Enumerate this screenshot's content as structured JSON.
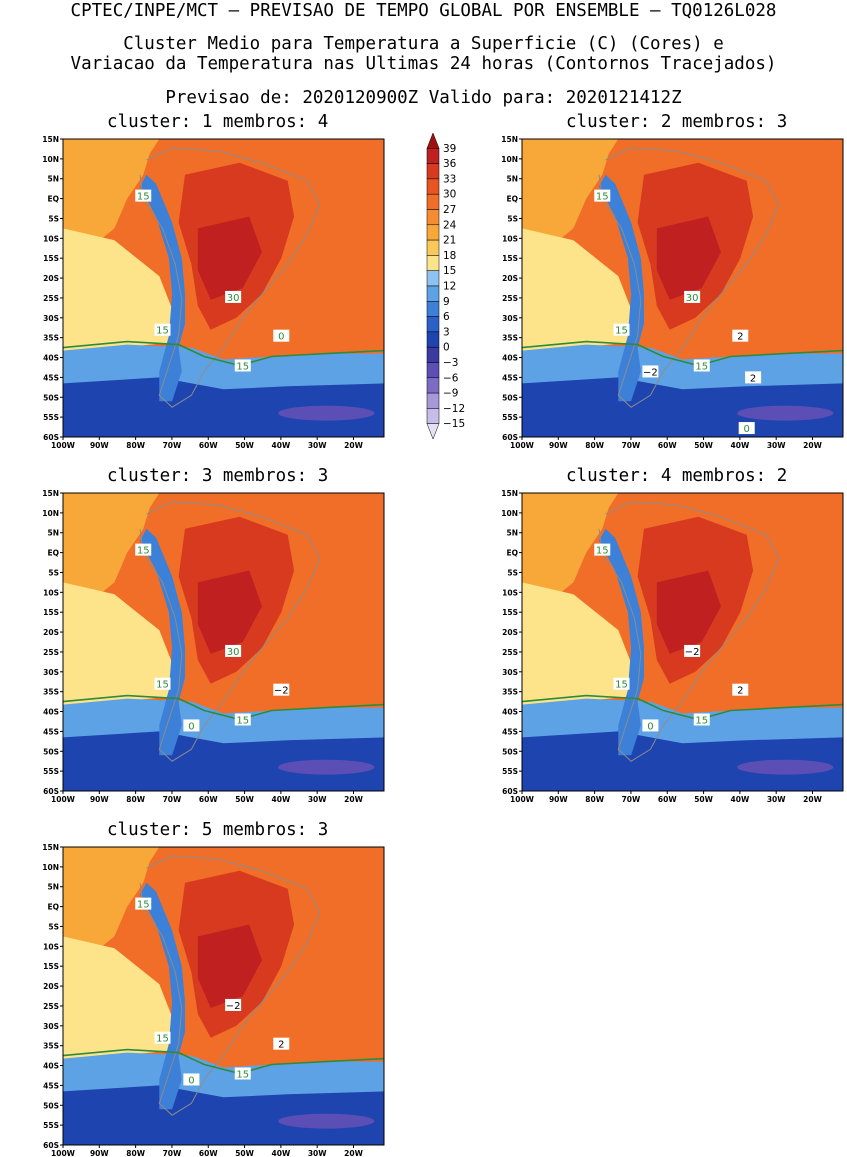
{
  "header": {
    "line1": "CPTEC/INPE/MCT – PREVISAO DE TEMPO GLOBAL POR ENSEMBLE – TQ0126L028",
    "line2": "Cluster Medio para Temperatura a Superficie (C) (Cores) e",
    "line3": "Variacao da Temperatura nas Ultimas 24 horas (Contornos Tracejados)",
    "line4": "Previsao de: 2020120900Z    Valido para: 2020121412Z"
  },
  "panels": [
    {
      "title": "cluster: 1   membros: 4",
      "labels": [
        "15",
        "15",
        "15",
        "30",
        "0"
      ]
    },
    {
      "title": "cluster: 2   membros: 3",
      "labels": [
        "15",
        "15",
        "15",
        "30",
        "2",
        "−2",
        "2",
        "0"
      ]
    },
    {
      "title": "cluster: 3   membros: 3",
      "labels": [
        "15",
        "15",
        "15",
        "30",
        "−2",
        "0"
      ]
    },
    {
      "title": "cluster: 4   membros: 2",
      "labels": [
        "15",
        "15",
        "15",
        "−2",
        "2",
        "0"
      ]
    },
    {
      "title": "cluster: 5   membros: 3",
      "labels": [
        "15",
        "15",
        "15",
        "−2",
        "2",
        "0"
      ]
    }
  ],
  "axes": {
    "lat_ticks": [
      "15N",
      "10N",
      "5N",
      "EQ",
      "5S",
      "10S",
      "15S",
      "20S",
      "25S",
      "30S",
      "35S",
      "40S",
      "45S",
      "50S",
      "55S",
      "60S"
    ],
    "lon_ticks": [
      "100W",
      "90W",
      "80W",
      "70W",
      "60W",
      "50W",
      "40W",
      "30W",
      "20W"
    ]
  },
  "colorbar": {
    "labels": [
      "39",
      "36",
      "33",
      "30",
      "27",
      "24",
      "21",
      "18",
      "15",
      "12",
      "9",
      "6",
      "3",
      "0",
      "−3",
      "−6",
      "−9",
      "−12",
      "−15"
    ],
    "colors": [
      "#a01010",
      "#c02020",
      "#d83a20",
      "#e85520",
      "#f06e28",
      "#f58c30",
      "#f8a838",
      "#fbc85a",
      "#fde48a",
      "#8ec2f0",
      "#5ea2e6",
      "#3c80d8",
      "#2a60c8",
      "#1e44b0",
      "#3b3aa0",
      "#5b4eb4",
      "#7d6cc6",
      "#a898da",
      "#c8bceb",
      "#e6e0f5"
    ]
  },
  "colors": {
    "ocean_warm": "#f06e28",
    "land_hot": "#d83a20",
    "pacific_mild": "#f8a838",
    "pacific_cool": "#fde48a",
    "south_cold": "#1e44b0",
    "andes": "#3c80d8",
    "contour_green": "#2e8b3a",
    "boundary_gray": "#8c8c8c"
  }
}
